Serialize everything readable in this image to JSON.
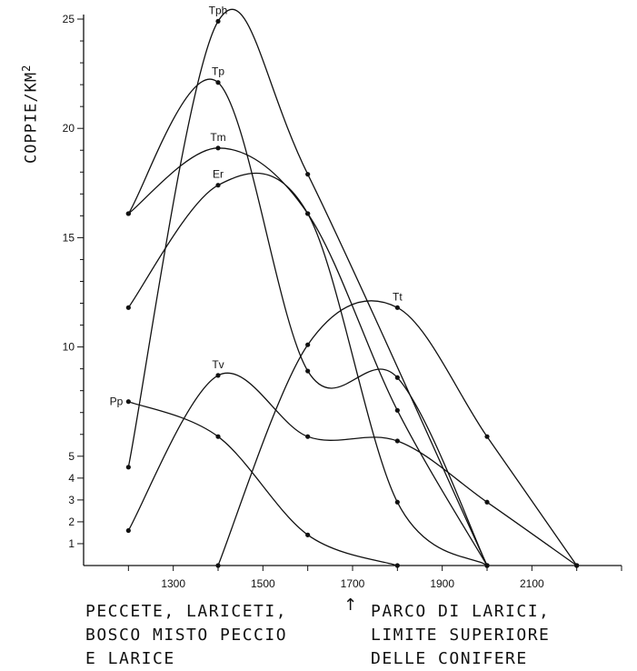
{
  "chart_data": {
    "type": "line",
    "ylabel": "COPPIE/KM",
    "ylabel_sup": "2",
    "ylim": [
      0,
      25.5
    ],
    "xlim": [
      1100,
      2300
    ],
    "y_tick_labels": [
      1,
      2,
      3,
      4,
      5,
      10,
      15,
      20,
      25
    ],
    "x_tick_labels": [
      1300,
      1500,
      1700,
      1900,
      2100
    ],
    "grid": false,
    "series": [
      {
        "name": "Tph",
        "x": [
          1200,
          1400,
          1600,
          2000
        ],
        "y": [
          4.5,
          24.9,
          17.9,
          0
        ]
      },
      {
        "name": "Tp",
        "x": [
          1200,
          1400,
          1600,
          1800,
          2000
        ],
        "y": [
          16.1,
          22.1,
          8.9,
          8.6,
          0
        ]
      },
      {
        "name": "Tm",
        "x": [
          1200,
          1400,
          1600,
          1800,
          2000
        ],
        "y": [
          16.1,
          19.1,
          16.1,
          7.1,
          0
        ]
      },
      {
        "name": "Er",
        "x": [
          1200,
          1400,
          1600,
          1800,
          2000
        ],
        "y": [
          11.8,
          17.4,
          16.1,
          2.9,
          0
        ]
      },
      {
        "name": "Tt",
        "x": [
          1400,
          1600,
          1800,
          2000,
          2200
        ],
        "y": [
          0,
          10.1,
          11.8,
          5.9,
          0
        ]
      },
      {
        "name": "Tv",
        "x": [
          1200,
          1400,
          1600,
          1800,
          2000,
          2200
        ],
        "y": [
          1.6,
          8.7,
          5.9,
          5.7,
          2.9,
          0
        ]
      },
      {
        "name": "Pp",
        "x": [
          1200,
          1400,
          1600,
          1800
        ],
        "y": [
          7.5,
          5.9,
          1.4,
          0
        ]
      }
    ],
    "annotations": {
      "left_caption": [
        "PECCETE, LARICETI,",
        "BOSCO MISTO PECCIO",
        "E LARICE"
      ],
      "right_caption": [
        "PARCO DI LARICI,",
        "LIMITE SUPERIORE",
        "DELLE CONIFERE"
      ],
      "arrow_glyph": "↑"
    }
  }
}
